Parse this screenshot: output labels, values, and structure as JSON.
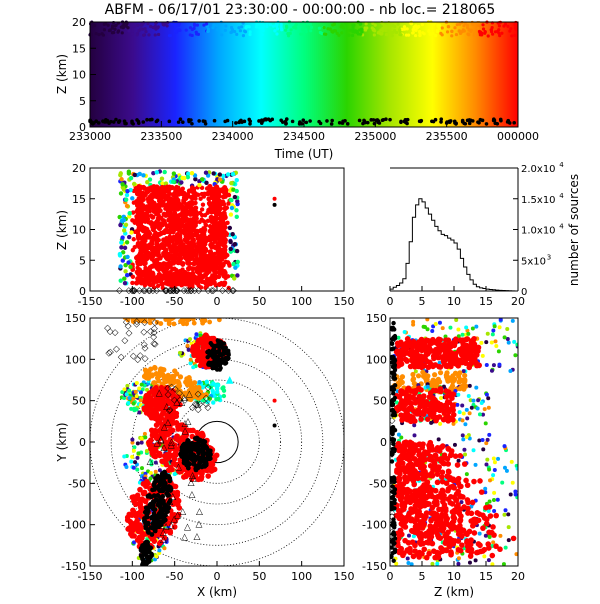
{
  "title": "ABFM - 06/17/01 23:30:00 - 00:00:00 - nb loc.= 218065",
  "colors": {
    "frame": "#000000",
    "background": "#ffffff",
    "rainbow": [
      "#240040",
      "#3b0b8c",
      "#1a24ff",
      "#00a6ff",
      "#00ffff",
      "#00ff7f",
      "#2bd400",
      "#a6e600",
      "#ffff00",
      "#ff8c00",
      "#ff0000"
    ]
  },
  "chart_data": [
    {
      "id": "time_height",
      "type": "scatter",
      "xlabel": "Time (UT)",
      "ylabel": "Z (km)",
      "x_ticks": [
        "233000",
        "233500",
        "234000",
        "234500",
        "235000",
        "235500",
        "000000"
      ],
      "y_ticks": [
        "0",
        "5",
        "10",
        "15",
        "20"
      ],
      "xlim": [
        0,
        1800
      ],
      "ylim": [
        0,
        20
      ],
      "grid": false,
      "color_scale": "time (rainbow, early=purple, late=red)"
    },
    {
      "id": "x_z",
      "type": "scatter",
      "xlabel": "",
      "ylabel": "Z (km)",
      "x_ticks": [
        "-150",
        "-100",
        "-50",
        "0",
        "50",
        "100",
        "150"
      ],
      "y_ticks": [
        "0",
        "5",
        "10",
        "15",
        "20"
      ],
      "xlim": [
        -150,
        150
      ],
      "ylim": [
        0,
        20
      ],
      "grid": false
    },
    {
      "id": "height_histogram",
      "type": "line",
      "xlabel": "",
      "ylabel": "number of sources",
      "x_ticks": [
        "0",
        "5",
        "10",
        "15",
        "20"
      ],
      "y_ticks": [
        "0",
        "5x10",
        "1.0x10",
        "1.5x10",
        "2.0x10"
      ],
      "y_tick_exp": "4",
      "y_tick_exp_small": "3",
      "xlim": [
        0,
        20
      ],
      "ylim": [
        0,
        20000
      ],
      "x": [
        0,
        0.5,
        1,
        1.5,
        2,
        2.5,
        3,
        3.5,
        4,
        4.5,
        5,
        5.5,
        6,
        6.5,
        7,
        7.5,
        8,
        8.5,
        9,
        9.5,
        10,
        10.5,
        11,
        11.5,
        12,
        12.5,
        13,
        13.5,
        14,
        14.5,
        15,
        15.5,
        16,
        16.5,
        17,
        17.5,
        18,
        18.5,
        19,
        19.5,
        20
      ],
      "values": [
        300,
        600,
        900,
        1300,
        2000,
        4500,
        8000,
        12000,
        14000,
        15000,
        14500,
        13500,
        12500,
        11500,
        10500,
        9800,
        9200,
        9000,
        8600,
        8300,
        7800,
        6800,
        5300,
        3900,
        2700,
        1800,
        1100,
        700,
        500,
        400,
        300,
        250,
        200,
        150,
        100,
        80,
        60,
        40,
        20,
        10,
        0
      ]
    },
    {
      "id": "plan_view",
      "type": "scatter",
      "xlabel": "X (km)",
      "ylabel": "Y (km)",
      "x_ticks": [
        "-150",
        "-100",
        "-50",
        "0",
        "50",
        "100",
        "150"
      ],
      "y_ticks": [
        "-150",
        "-100",
        "-50",
        "0",
        "50",
        "100",
        "150"
      ],
      "xlim": [
        -150,
        150
      ],
      "ylim": [
        -150,
        150
      ],
      "range_rings_km": [
        25,
        50,
        75,
        100,
        125,
        150
      ],
      "grid": false
    },
    {
      "id": "z_y",
      "type": "scatter",
      "xlabel": "Z (km)",
      "ylabel": "",
      "x_ticks": [
        "0",
        "5",
        "10",
        "15",
        "20"
      ],
      "y_ticks": [
        "-150",
        "-100",
        "-50",
        "0",
        "50",
        "100",
        "150"
      ],
      "xlim": [
        0,
        20
      ],
      "ylim": [
        -150,
        150
      ],
      "grid": false
    }
  ]
}
